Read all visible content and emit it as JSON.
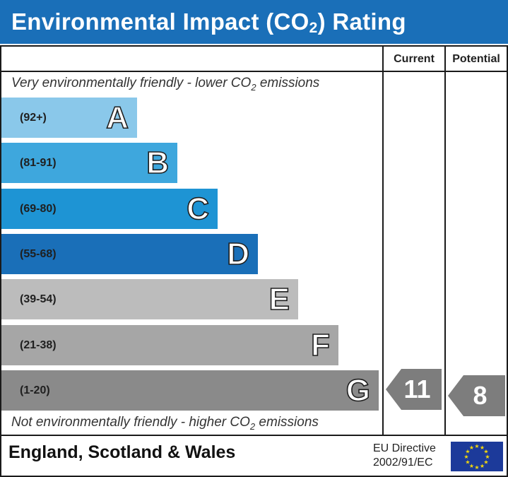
{
  "header": {
    "title_prefix": "Environmental Impact (CO",
    "title_sub": "2",
    "title_suffix": ") Rating"
  },
  "columns": {
    "current": "Current",
    "potential": "Potential"
  },
  "captions": {
    "top_prefix": "Very environmentally friendly - lower CO",
    "top_sub": "2",
    "top_suffix": " emissions",
    "bottom_prefix": "Not environmentally friendly - higher CO",
    "bottom_sub": "2",
    "bottom_suffix": " emissions"
  },
  "chart_data": {
    "type": "bar",
    "categories": [
      "A",
      "B",
      "C",
      "D",
      "E",
      "F",
      "G"
    ],
    "ranges": [
      "(92+)",
      "(81-91)",
      "(69-80)",
      "(55-68)",
      "(39-54)",
      "(21-38)",
      "(1-20)"
    ],
    "colors": [
      "#8ac8ea",
      "#3ea7dd",
      "#1e94d4",
      "#1a6fb8",
      "#bcbcbc",
      "#a6a6a6",
      "#8a8a8a"
    ],
    "current": {
      "value": 11,
      "band": "G"
    },
    "potential": {
      "value": 8,
      "band": "G"
    }
  },
  "footer": {
    "region": "England, Scotland & Wales",
    "directive_line1": "EU Directive",
    "directive_line2": "2002/91/EC"
  },
  "colors": {
    "header": "#1a6fb8",
    "arrow": "#7d7d7d",
    "eu_flag": "#1c3a9a",
    "eu_stars": "#f5d90a"
  },
  "icons": {
    "flag": "eu-flag-icon"
  }
}
